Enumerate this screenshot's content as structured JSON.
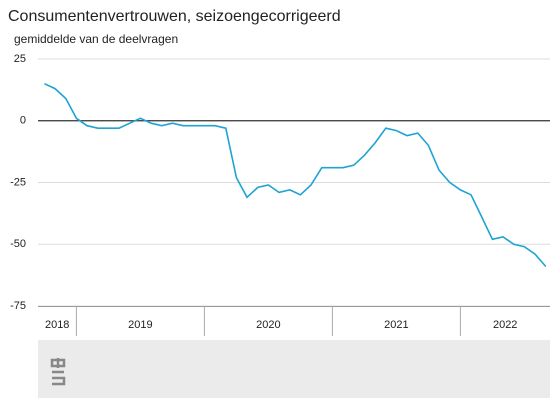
{
  "chart_data": {
    "type": "line",
    "title": "Consumentenvertrouwen, seizoengecorrigeerd",
    "subtitle": "gemiddelde van de deelvragen",
    "x": [
      2018.75,
      2018.833,
      2018.917,
      2019,
      2019.083,
      2019.167,
      2019.25,
      2019.333,
      2019.417,
      2019.5,
      2019.583,
      2019.667,
      2019.75,
      2019.833,
      2019.917,
      2020,
      2020.083,
      2020.167,
      2020.25,
      2020.333,
      2020.417,
      2020.5,
      2020.583,
      2020.667,
      2020.75,
      2020.833,
      2020.917,
      2021,
      2021.083,
      2021.167,
      2021.25,
      2021.333,
      2021.417,
      2021.5,
      2021.583,
      2021.667,
      2021.75,
      2021.833,
      2021.917,
      2022,
      2022.083,
      2022.167,
      2022.25,
      2022.333,
      2022.417,
      2022.5,
      2022.583,
      2022.667
    ],
    "series": [
      {
        "name": "Consumentenvertrouwen",
        "color": "#1ea3d3",
        "values": [
          15,
          13,
          9,
          1,
          -2,
          -3,
          -3,
          -3,
          -1,
          1,
          -1,
          -2,
          -1,
          -2,
          -2,
          -2,
          -2,
          -3,
          -23,
          -31,
          -27,
          -26,
          -29,
          -28,
          -30,
          -26,
          -19,
          -19,
          -19,
          -18,
          -14,
          -9,
          -3,
          -4,
          -6,
          -5,
          -10,
          -20,
          -25,
          -28,
          -30,
          -39,
          -48,
          -47,
          -50,
          -51,
          -54,
          -59
        ]
      }
    ],
    "xlim": [
      2018.7,
      2022.7
    ],
    "xticks": [
      {
        "value": 2018,
        "label": "2018"
      },
      {
        "value": 2019,
        "label": "2019"
      },
      {
        "value": 2020,
        "label": "2020"
      },
      {
        "value": 2021,
        "label": "2021"
      },
      {
        "value": 2022,
        "label": "2022"
      }
    ],
    "ylim": [
      -75,
      25
    ],
    "yticks": [
      -75,
      -50,
      -25,
      0,
      25
    ],
    "grid": true
  }
}
